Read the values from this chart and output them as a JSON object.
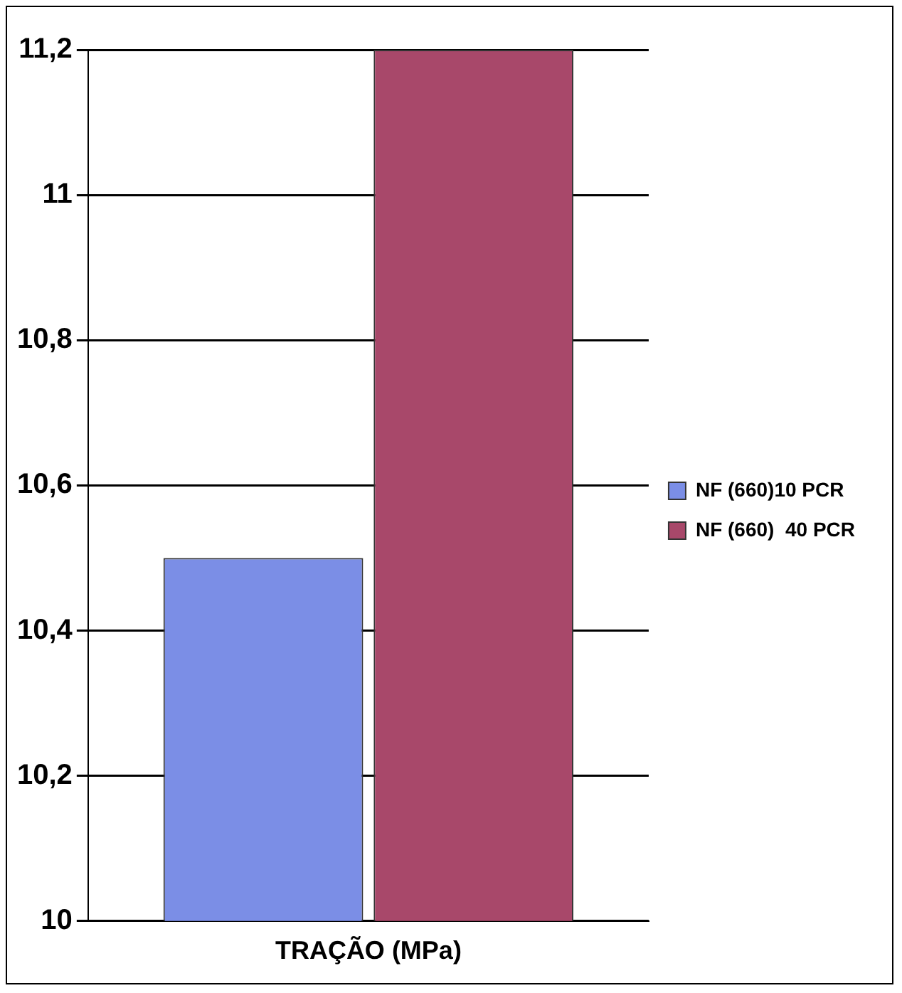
{
  "chart_data": {
    "type": "bar",
    "categories": [
      "TRAÇÃO (MPa)"
    ],
    "series": [
      {
        "name": "NF (660)10 PCR",
        "color": "#7b8ee6",
        "values": [
          10.5
        ]
      },
      {
        "name": "NF (660)  40 PCR",
        "color": "#a8486a",
        "values": [
          11.2
        ]
      }
    ],
    "ylim": [
      10,
      11.2
    ],
    "yticks": [
      {
        "value": 10,
        "label": "10"
      },
      {
        "value": 10.2,
        "label": "10,2"
      },
      {
        "value": 10.4,
        "label": "10,4"
      },
      {
        "value": 10.6,
        "label": "10,6"
      },
      {
        "value": 10.8,
        "label": "10,8"
      },
      {
        "value": 11,
        "label": "11"
      },
      {
        "value": 11.2,
        "label": "11,2"
      }
    ],
    "grid": "y",
    "legend": "right"
  }
}
